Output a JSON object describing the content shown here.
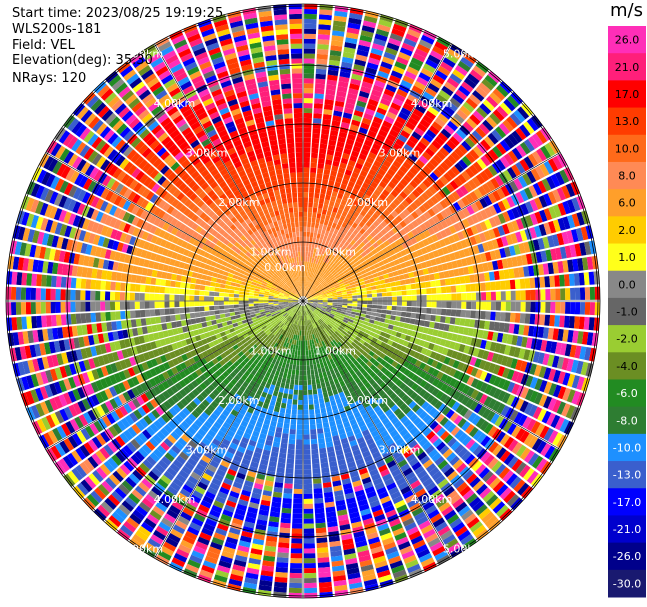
{
  "header": {
    "start_time": "Start time: 2023/08/25 19:19:25",
    "instrument": "WLS200s-181",
    "field": "Field: VEL",
    "elevation": "Elevation(deg): 35.30",
    "nrays": "NRays: 120"
  },
  "colorbar": {
    "unit": "m/s",
    "ticks": [
      "26.0",
      "21.0",
      "17.0",
      "13.0",
      "10.0",
      "8.0",
      "6.0",
      "2.0",
      "1.0",
      "0.0",
      "-1.0",
      "-2.0",
      "-4.0",
      "-6.0",
      "-8.0",
      "-10.0",
      "-13.0",
      "-17.0",
      "-21.0",
      "-26.0",
      "-30.0"
    ],
    "colors": [
      "#ff2eb8",
      "#ff1f7a",
      "#ff0000",
      "#ff3c00",
      "#ff6a1a",
      "#ff8a55",
      "#ff9f2a",
      "#ffcc00",
      "#ffff1a",
      "#888888",
      "#666666",
      "#9acd32",
      "#6b8e23",
      "#228b22",
      "#2e7d32",
      "#1e90ff",
      "#3a5fcd",
      "#0000ff",
      "#0000cd",
      "#00008b",
      "#191970"
    ]
  },
  "chart_data": {
    "type": "heatmap",
    "title": "",
    "projection": "polar PPI",
    "range_rings_km": [
      "1.00km",
      "2.00km",
      "3.00km",
      "4.00km",
      "5.00km"
    ],
    "center_ring_label": "0.00km",
    "n_rays": 120,
    "field": "VEL",
    "unit": "m/s",
    "pattern": "positive (toward red) to the north, negative (toward blue) to the south, near-zero grey along the east-west line; noisy colors beyond about 4 km"
  }
}
